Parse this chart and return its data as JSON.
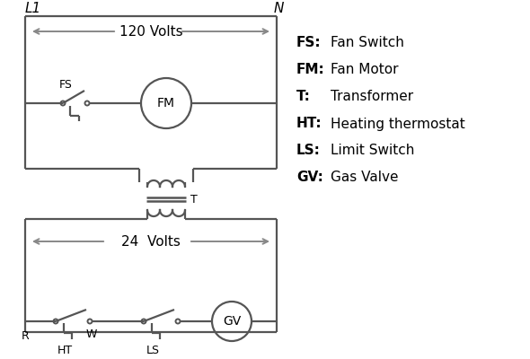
{
  "background_color": "#ffffff",
  "line_color": "#555555",
  "arrow_color": "#888888",
  "text_color": "#000000",
  "legend_items": [
    [
      "FS:",
      "Fan Switch"
    ],
    [
      "FM:",
      "Fan Motor"
    ],
    [
      "T:",
      "Transformer"
    ],
    [
      "HT:",
      "Heating thermostat"
    ],
    [
      "LS:",
      "Limit Switch"
    ],
    [
      "GV:",
      "Gas Valve"
    ]
  ],
  "L1_label": "L1",
  "N_label": "N",
  "volts120_label": "120 Volts",
  "volts24_label": "24  Volts",
  "FS_label": "FS",
  "FM_label": "FM",
  "T_label": "T",
  "R_label": "R",
  "W_label": "W",
  "HT_label": "HT",
  "LS_label": "LS",
  "GV_label": "GV"
}
